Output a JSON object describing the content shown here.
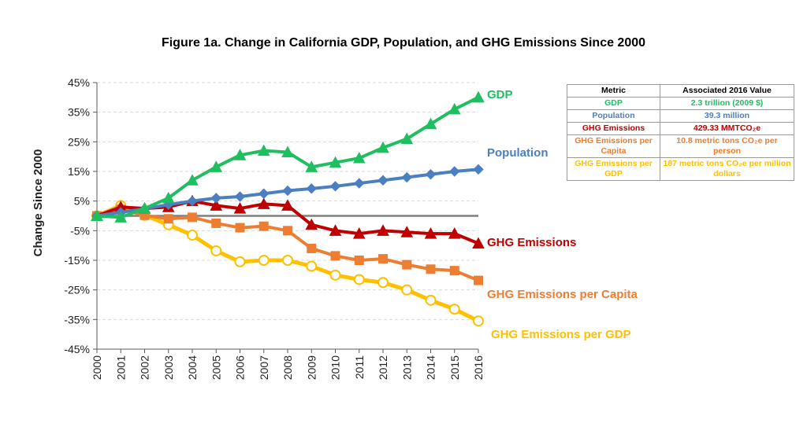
{
  "title": "Figure 1a. Change in California GDP, Population, and GHG Emissions Since 2000",
  "table": {
    "headers": [
      "Metric",
      "Associated 2016 Value"
    ],
    "rows": [
      {
        "metric": "GDP",
        "value": "2.3 trillion (2009 $)",
        "color": "#1fbf5f"
      },
      {
        "metric": "Population",
        "value": "39.3 million",
        "color": "#4a7fc1"
      },
      {
        "metric": "GHG Emissions",
        "value": "429.33 MMTCO₂e",
        "color": "#c00000"
      },
      {
        "metric": "GHG Emissions per Capita",
        "value": "10.8 metric tons CO₂e per person",
        "color": "#ed7d31"
      },
      {
        "metric": "GHG Emissions per GDP",
        "value": "187 metric tons CO₂e per million dollars",
        "color": "#ffc000"
      }
    ]
  },
  "chart_data": {
    "type": "line",
    "title": "Figure 1a. Change in California GDP, Population, and GHG Emissions Since 2000",
    "xlabel": "",
    "ylabel": "Change Since 2000",
    "x": [
      "2000",
      "2001",
      "2002",
      "2003",
      "2004",
      "2005",
      "2006",
      "2007",
      "2008",
      "2009",
      "2010",
      "2011",
      "2012",
      "2013",
      "2014",
      "2015",
      "2016"
    ],
    "ylim": [
      -45,
      45
    ],
    "yticks": [
      45,
      35,
      25,
      15,
      5,
      -5,
      -15,
      -25,
      -35,
      -45
    ],
    "ytick_labels": [
      "45%",
      "35%",
      "25%",
      "15%",
      "5%",
      "-5%",
      "-15%",
      "-25%",
      "-35%",
      "-45%"
    ],
    "grid": true,
    "legend": "direct labels at line ends",
    "series": [
      {
        "name": "GDP",
        "color": "#1fbf5f",
        "marker": "triangle",
        "values": [
          0,
          -0.5,
          2.5,
          6,
          12,
          16.5,
          20.5,
          22,
          21.5,
          16.5,
          18,
          19.5,
          23,
          26,
          31,
          36,
          40
        ]
      },
      {
        "name": "Population",
        "color": "#4a7fc1",
        "marker": "diamond",
        "values": [
          0,
          1.2,
          2.4,
          3.8,
          5,
          6,
          6.5,
          7.5,
          8.5,
          9.2,
          10,
          11,
          12,
          13,
          14,
          15,
          15.7
        ]
      },
      {
        "name": "GHG Emissions",
        "color": "#c00000",
        "marker": "triangle",
        "values": [
          0,
          3,
          2.5,
          3,
          5,
          3.5,
          2.5,
          4,
          3.5,
          -3,
          -5,
          -6,
          -5,
          -5.5,
          -6,
          -6,
          -9.3
        ]
      },
      {
        "name": "GHG Emissions per Capita",
        "color": "#ed7d31",
        "marker": "square",
        "values": [
          0,
          2.2,
          0.2,
          -1,
          -0.5,
          -2.5,
          -4,
          -3.5,
          -5,
          -11,
          -13.5,
          -15,
          -14.5,
          -16.5,
          -18,
          -18.5,
          -21.8
        ]
      },
      {
        "name": "GHG Emissions per GDP",
        "color": "#ffc000",
        "marker": "circle",
        "values": [
          0,
          3.5,
          0.2,
          -3,
          -6.5,
          -11.8,
          -15.5,
          -15,
          -15,
          -17,
          -20,
          -21.5,
          -22.5,
          -25,
          -28.5,
          -31.5,
          -35.5
        ]
      }
    ],
    "baseline": {
      "value": 0,
      "color": "#7f7f7f"
    }
  }
}
